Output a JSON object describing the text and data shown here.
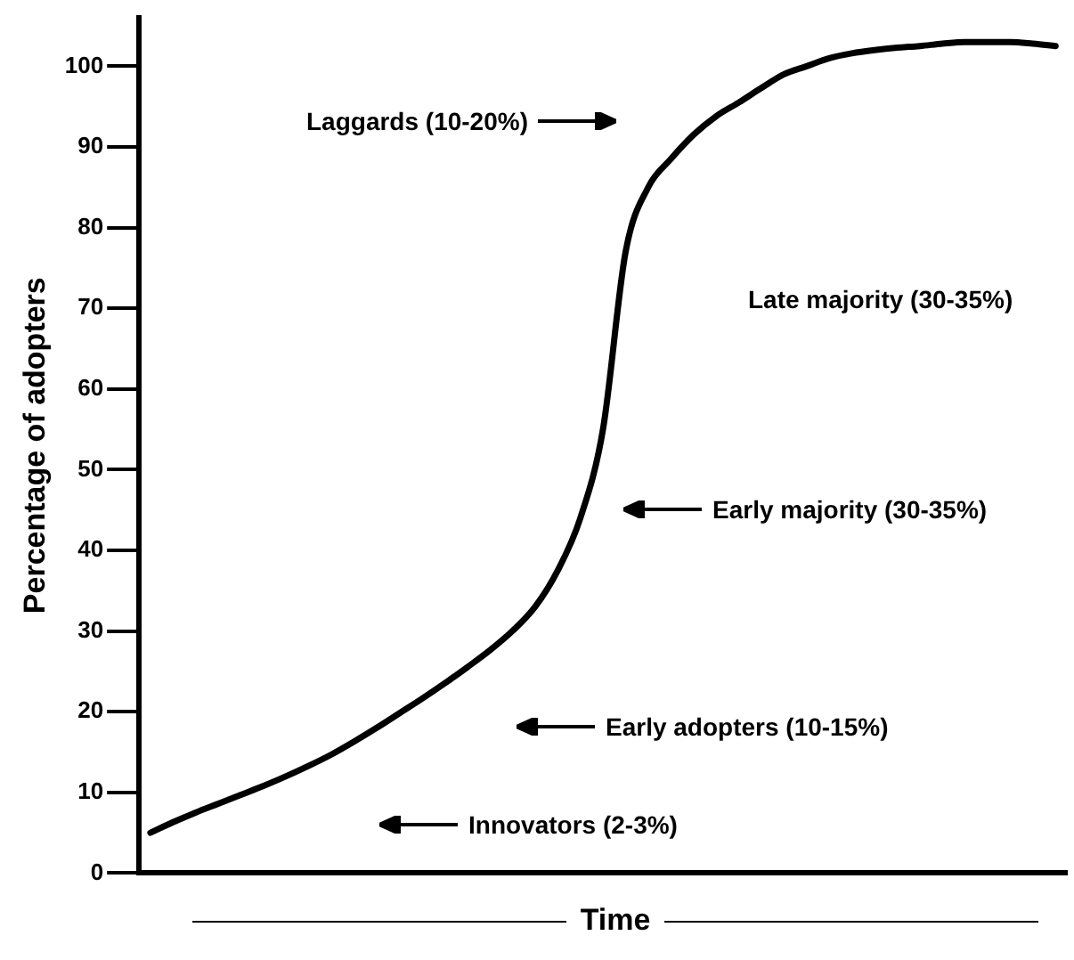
{
  "chart_data": {
    "type": "line",
    "xlabel": "Time",
    "ylabel": "Percentage of adopters",
    "categories": [
      null,
      null,
      null,
      null,
      null,
      null,
      null,
      null,
      null,
      null,
      null,
      null,
      null,
      null,
      null,
      null,
      null,
      null,
      null,
      null,
      null,
      null,
      null,
      null,
      null,
      null,
      null,
      null,
      null,
      null,
      null,
      null,
      null,
      null,
      null,
      null,
      null,
      null,
      null,
      null,
      null
    ],
    "values": [
      5,
      6.3,
      7.5,
      8.6,
      9.7,
      10.8,
      12,
      13.3,
      14.7,
      16.3,
      18,
      19.8,
      21.6,
      23.5,
      25.5,
      27.6,
      30,
      33,
      37.5,
      44,
      55,
      77,
      85,
      88.5,
      91.5,
      93.8,
      95.5,
      97.3,
      99,
      100,
      101,
      101.6,
      102,
      102.3,
      102.5,
      102.8,
      103,
      103,
      103,
      102.8,
      102.5
    ],
    "color": "#000000",
    "marker": "none",
    "line_style": "solid",
    "tick_labels": "y",
    "ylim": [
      0,
      106
    ],
    "yticks": [
      0,
      10,
      20,
      30,
      40,
      50,
      60,
      70,
      80,
      90,
      100
    ],
    "annotations": [
      "Laggards (10-20%)",
      "Late majority (30-35%)",
      "Early majority (30-35%)",
      "Early adopters (10-15%)",
      "Innovators (2-3%)"
    ]
  }
}
